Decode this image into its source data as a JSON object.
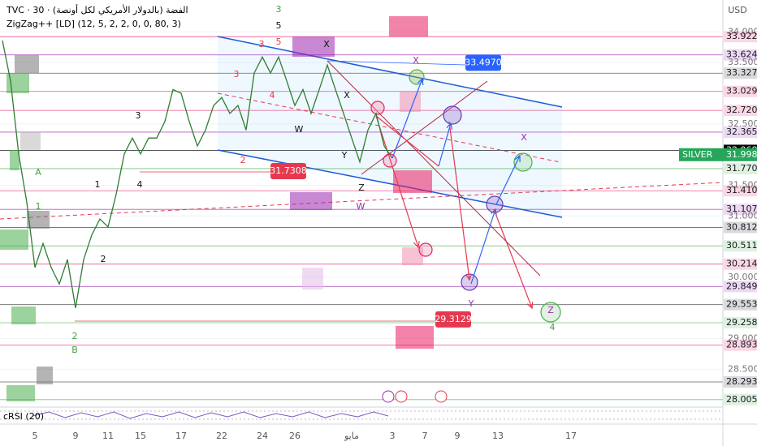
{
  "chart_data": {
    "type": "line",
    "title": "TVC · 30 · الفضة (بالدولار الأمريكي لكل أونصة)",
    "subtitle": "ZigZag++ [LD] (12, 5, 2, 2, 0, 0, 80, 3)",
    "currency": "USD",
    "indicator": "cRSI (20)",
    "categories": [
      null,
      null,
      null,
      null,
      "5",
      null,
      null,
      null,
      null,
      "9",
      null,
      null,
      null,
      "11",
      null,
      null,
      null,
      "15",
      null,
      null,
      null,
      null,
      "17",
      null,
      null,
      null,
      null,
      "22",
      null,
      null,
      null,
      null,
      "24",
      null,
      null,
      null,
      "26",
      null,
      null,
      null,
      null,
      null,
      null,
      "مايو",
      null,
      null,
      null,
      null,
      "3",
      null,
      null,
      null,
      "7",
      null,
      null,
      null,
      "9",
      null,
      null,
      null,
      null,
      "13",
      null,
      null,
      null,
      null,
      null,
      null,
      null,
      null,
      "17",
      null
    ],
    "series": [
      {
        "name": "SILVER",
        "color": "#2e7d32",
        "values": [
          33.86,
          33.2,
          32.01,
          31.22,
          30.16,
          30.55,
          30.16,
          29.89,
          30.29,
          29.5,
          30.29,
          30.69,
          30.95,
          30.82,
          31.35,
          32.01,
          32.27,
          32.01,
          32.27,
          32.27,
          32.54,
          33.06,
          33.0,
          32.54,
          32.14,
          32.4,
          32.8,
          32.93,
          32.67,
          32.8,
          32.4,
          33.33,
          33.59,
          33.33,
          33.59,
          33.2,
          32.8,
          33.06,
          32.67,
          33.06,
          33.46,
          33.06,
          32.67,
          32.27,
          31.88,
          32.4,
          32.67,
          32.14,
          31.94,
          null,
          null,
          null,
          null,
          null,
          null,
          null,
          null,
          null,
          null,
          null,
          null,
          null,
          null,
          null,
          null,
          null,
          null,
          null,
          null,
          null,
          null,
          null
        ]
      }
    ],
    "ylim": [
      27.91,
      34.52
    ],
    "yticks": [
      {
        "value": 34,
        "label": "34.0000"
      },
      {
        "value": 33.5,
        "label": "33.5000"
      },
      {
        "value": 32.5,
        "label": "32.5000"
      },
      {
        "value": 31.5,
        "label": "31.5000"
      },
      {
        "value": 31,
        "label": "31.0000"
      },
      {
        "value": 30,
        "label": "30.0000"
      },
      {
        "value": 29,
        "label": "29.0000"
      },
      {
        "value": 28.5,
        "label": "28.5000"
      }
    ],
    "levels": [
      {
        "value": 33.9225,
        "color": "#e91e63"
      },
      {
        "value": 33.6249,
        "color": "#9c27b0"
      },
      {
        "value": 33.3273,
        "color": "#333333"
      },
      {
        "value": 33.0297,
        "color": "#e91e63"
      },
      {
        "value": 32.7207,
        "color": "#e91e63"
      },
      {
        "value": 32.3659,
        "color": "#9c27b0"
      },
      {
        "value": 32.0684,
        "color": "#000000"
      },
      {
        "value": 31.7708,
        "color": "#4caf50"
      },
      {
        "value": 31.4103,
        "color": "#e91e63"
      },
      {
        "value": 31.107,
        "label": "31.1070",
        "color": "#9c27b0"
      },
      {
        "value": 30.8128,
        "color": "#333333"
      },
      {
        "value": 30.5118,
        "color": "#4caf50"
      },
      {
        "value": 30.2142,
        "color": "#e91e63"
      },
      {
        "value": 29.849,
        "label": "29.8490",
        "color": "#9c27b0"
      },
      {
        "value": 29.5534,
        "color": "#333333"
      },
      {
        "value": 29.2585,
        "color": "#4caf50"
      },
      {
        "value": 28.8933,
        "color": "#e91e63"
      },
      {
        "value": 28.2936,
        "color": "#333333"
      },
      {
        "value": 28.0053,
        "color": "#4caf50"
      }
    ],
    "last_price": {
      "value": 31.9982,
      "color": "#26a65b"
    },
    "price_tags": [
      {
        "value": 33.497,
        "label": "33.4970",
        "color": "#2962ff"
      },
      {
        "value": 31.7308,
        "label": "31.7308",
        "color": "#e53950"
      },
      {
        "value": 29.3129,
        "label": "29.3129",
        "color": "#e53950"
      }
    ],
    "annotations": [
      {
        "text": "3",
        "color": "#43a047"
      },
      {
        "text": "5",
        "color": "#111111"
      },
      {
        "text": "X",
        "color": "#111111"
      },
      {
        "text": "3",
        "color": "#e53950"
      },
      {
        "text": "5",
        "color": "#e53950"
      },
      {
        "text": "X",
        "color": "#9c27b0"
      },
      {
        "text": "3",
        "color": "#e53950"
      },
      {
        "text": "4",
        "color": "#e53950"
      },
      {
        "text": "X",
        "color": "#111111"
      },
      {
        "text": "W",
        "color": "#111111"
      },
      {
        "text": "Y",
        "color": "#111111"
      },
      {
        "text": "2",
        "color": "#e53950"
      },
      {
        "text": "A",
        "color": "#43a047"
      },
      {
        "text": "3",
        "color": "#111111"
      },
      {
        "text": "1",
        "color": "#111111"
      },
      {
        "text": "4",
        "color": "#111111"
      },
      {
        "text": "1",
        "color": "#43a047"
      },
      {
        "text": "Z",
        "color": "#111111"
      },
      {
        "text": "W",
        "color": "#9c27b0"
      },
      {
        "text": "2",
        "color": "#111111"
      },
      {
        "text": "2",
        "color": "#43a047"
      },
      {
        "text": "B",
        "color": "#43a047"
      },
      {
        "text": "Y",
        "color": "#9c27b0"
      },
      {
        "text": "X",
        "color": "#9c27b0"
      },
      {
        "text": "Z",
        "color": "#9c27b0"
      },
      {
        "text": "4",
        "color": "#43a047"
      }
    ]
  }
}
